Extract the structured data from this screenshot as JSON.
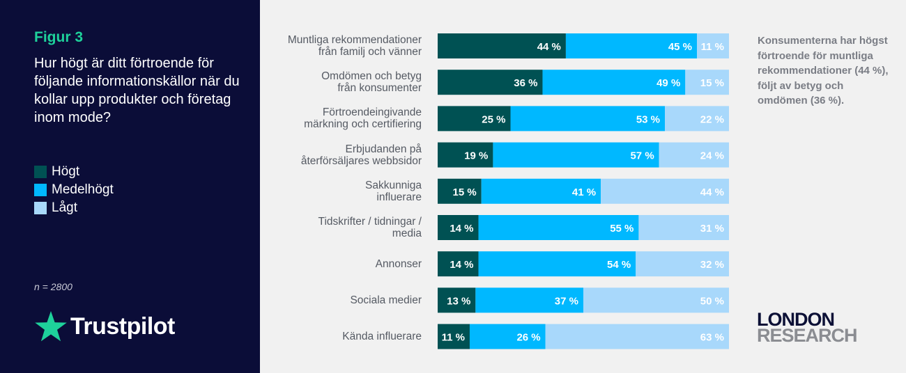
{
  "figure_label": "Figur 3",
  "question": "Hur högt är ditt förtroende för följande informationskällor när du kollar upp produkter och företag inom mode?",
  "legend": [
    {
      "label": "Högt",
      "color": "#005153"
    },
    {
      "label": "Medelhögt",
      "color": "#00b8ff"
    },
    {
      "label": "Lågt",
      "color": "#a8d8fb"
    }
  ],
  "sample_size": "n = 2800",
  "brand": "Trustpilot",
  "note": "Konsumenterna har högst förtroende för muntliga rekommendationer (44 %), följt av betyg och omdömen (36 %).",
  "partner_logo": {
    "line1": "LONDON",
    "line2": "RESEARCH"
  },
  "chart_data": {
    "type": "bar",
    "orientation": "horizontal",
    "stacked": true,
    "title": "Hur högt är ditt förtroende för följande informationskällor när du kollar upp produkter och företag inom mode?",
    "categories": [
      [
        "Muntliga rekommendationer",
        "från familj och vänner"
      ],
      [
        "Omdömen och betyg",
        "från konsumenter"
      ],
      [
        "Förtroendeingivande",
        "märkning och certifiering"
      ],
      [
        "Erbjudanden på",
        "återförsäljares webbsidor"
      ],
      [
        "Sakkunniga",
        "influerare"
      ],
      [
        "Tidskrifter / tidningar /",
        "media"
      ],
      [
        "Annonser"
      ],
      [
        "Sociala medier"
      ],
      [
        "Kända influerare"
      ]
    ],
    "series": [
      {
        "name": "Högt",
        "color": "#005153",
        "values": [
          44,
          36,
          25,
          19,
          15,
          14,
          14,
          13,
          11
        ]
      },
      {
        "name": "Medelhögt",
        "color": "#00b8ff",
        "values": [
          45,
          49,
          53,
          57,
          41,
          55,
          54,
          37,
          26
        ]
      },
      {
        "name": "Lågt",
        "color": "#a8d8fb",
        "values": [
          11,
          15,
          22,
          24,
          44,
          31,
          32,
          50,
          63
        ]
      }
    ],
    "value_suffix": " %",
    "xlim": [
      0,
      100
    ]
  }
}
